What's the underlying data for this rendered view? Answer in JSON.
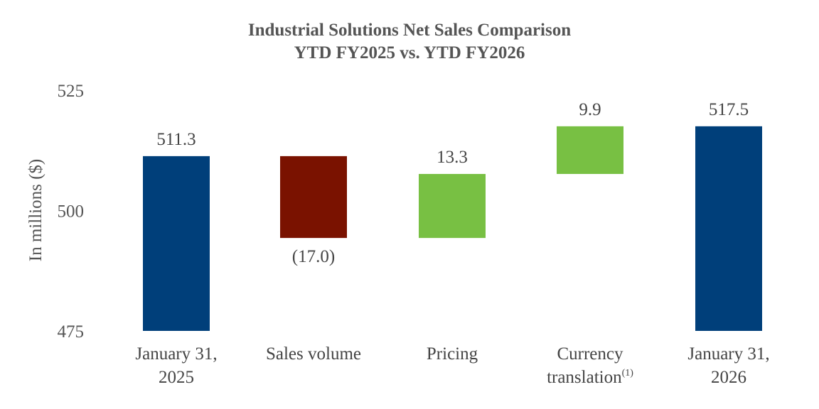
{
  "chart_data": {
    "type": "bar",
    "subtype": "waterfall",
    "title": [
      "Industrial Solutions Net Sales Comparison",
      "YTD FY2025 vs. YTD FY2026"
    ],
    "xlabel": "",
    "ylabel": "In millions ($)",
    "ylim": [
      475,
      525
    ],
    "yticks": [
      "475",
      "500",
      "525"
    ],
    "grid": false,
    "categories": [
      {
        "lines": [
          "January 31,",
          "2025"
        ],
        "sup": ""
      },
      {
        "lines": [
          "Sales volume"
        ],
        "sup": ""
      },
      {
        "lines": [
          "Pricing"
        ],
        "sup": ""
      },
      {
        "lines": [
          "Currency",
          "translation"
        ],
        "sup": "(1)"
      },
      {
        "lines": [
          "January 31,",
          "2026"
        ],
        "sup": ""
      }
    ],
    "bars": [
      {
        "kind": "total",
        "start": 475,
        "end": 511.3,
        "label": "511.3",
        "label_pos": "above",
        "color": "#003f7a"
      },
      {
        "kind": "decrease",
        "start": 511.3,
        "end": 494.3,
        "label": "(17.0)",
        "label_pos": "below",
        "color": "#7a1200"
      },
      {
        "kind": "increase",
        "start": 494.3,
        "end": 507.6,
        "label": "13.3",
        "label_pos": "above",
        "color": "#78c043"
      },
      {
        "kind": "increase",
        "start": 507.6,
        "end": 517.5,
        "label": "9.9",
        "label_pos": "above",
        "color": "#78c043"
      },
      {
        "kind": "total",
        "start": 475,
        "end": 517.5,
        "label": "517.5",
        "label_pos": "above",
        "color": "#003f7a"
      }
    ]
  }
}
